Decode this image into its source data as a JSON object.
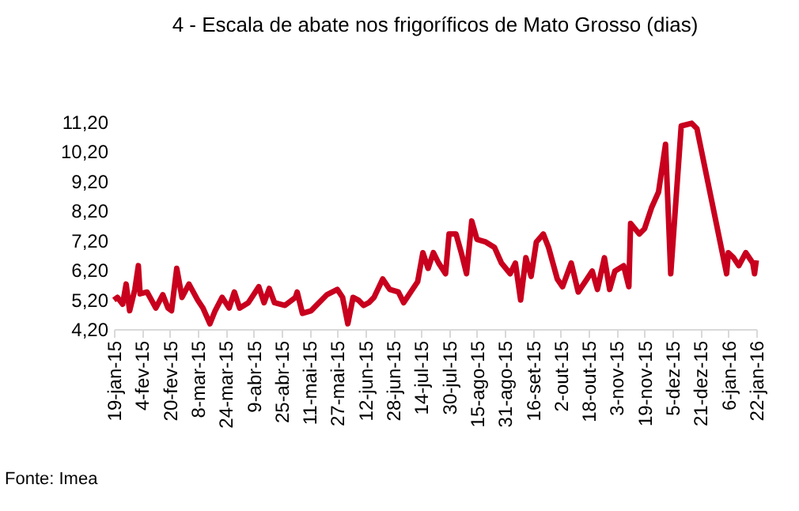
{
  "chart_data": {
    "type": "line",
    "title": "4 - Escala de abate nos frigoríficos de Mato Grosso (dias)",
    "annotations": [
      "Fonte: Imea"
    ],
    "x": [
      "2015-01-19",
      "2015-01-21",
      "2015-01-24",
      "2015-01-26",
      "2015-01-28",
      "2015-01-31",
      "2015-02-02",
      "2015-02-03",
      "2015-02-07",
      "2015-02-12",
      "2015-02-16",
      "2015-02-19",
      "2015-02-21",
      "2015-02-24",
      "2015-02-27",
      "2015-03-03",
      "2015-03-08",
      "2015-03-11",
      "2015-03-15",
      "2015-03-18",
      "2015-03-22",
      "2015-03-26",
      "2015-03-29",
      "2015-04-01",
      "2015-04-06",
      "2015-04-09",
      "2015-04-12",
      "2015-04-15",
      "2015-04-18",
      "2015-04-21",
      "2015-04-27",
      "2015-05-03",
      "2015-05-04",
      "2015-05-07",
      "2015-05-12",
      "2015-05-15",
      "2015-05-21",
      "2015-05-27",
      "2015-05-30",
      "2015-06-02",
      "2015-06-05",
      "2015-06-08",
      "2015-06-11",
      "2015-06-14",
      "2015-06-17",
      "2015-06-22",
      "2015-06-26",
      "2015-07-01",
      "2015-07-04",
      "2015-07-07",
      "2015-07-12",
      "2015-07-15",
      "2015-07-18",
      "2015-07-21",
      "2015-07-24",
      "2015-07-28",
      "2015-07-30",
      "2015-08-03",
      "2015-08-06",
      "2015-08-09",
      "2015-08-12",
      "2015-08-15",
      "2015-08-20",
      "2015-08-25",
      "2015-08-29",
      "2015-09-03",
      "2015-09-06",
      "2015-09-09",
      "2015-09-12",
      "2015-09-15",
      "2015-09-18",
      "2015-09-22",
      "2015-09-25",
      "2015-09-30",
      "2015-10-03",
      "2015-10-08",
      "2015-10-12",
      "2015-10-17",
      "2015-10-20",
      "2015-10-23",
      "2015-10-27",
      "2015-10-30",
      "2015-11-02",
      "2015-11-07",
      "2015-11-10",
      "2015-11-11",
      "2015-11-16",
      "2015-11-19",
      "2015-11-23",
      "2015-11-27",
      "2015-12-01",
      "2015-12-04",
      "2015-12-10",
      "2015-12-16",
      "2015-12-19",
      "2016-01-05",
      "2016-01-06",
      "2016-01-09",
      "2016-01-12",
      "2016-01-16",
      "2016-01-20",
      "2016-01-21",
      "2016-01-22"
    ],
    "series": [
      {
        "color": "#c8001e",
        "values": [
          5.18,
          5.27,
          5.04,
          5.72,
          4.82,
          5.54,
          6.34,
          5.39,
          5.45,
          4.91,
          5.36,
          4.91,
          4.82,
          6.25,
          5.27,
          5.72,
          5.18,
          4.91,
          4.38,
          4.82,
          5.27,
          4.91,
          5.45,
          4.91,
          5.09,
          5.36,
          5.63,
          5.09,
          5.57,
          5.09,
          5.0,
          5.27,
          5.45,
          4.73,
          4.82,
          5.0,
          5.36,
          5.54,
          5.27,
          4.38,
          5.27,
          5.18,
          5.0,
          5.09,
          5.27,
          5.89,
          5.54,
          5.45,
          5.09,
          5.36,
          5.8,
          6.78,
          6.25,
          6.78,
          6.43,
          6.07,
          7.41,
          7.41,
          6.78,
          6.07,
          7.85,
          7.23,
          7.14,
          6.96,
          6.43,
          6.07,
          6.43,
          5.18,
          6.61,
          5.98,
          7.14,
          7.41,
          6.96,
          5.89,
          5.63,
          6.43,
          5.45,
          5.89,
          6.16,
          5.54,
          6.61,
          5.54,
          6.16,
          6.34,
          5.63,
          7.77,
          7.41,
          7.59,
          8.3,
          8.83,
          10.44,
          6.07,
          11.06,
          11.15,
          10.97,
          6.07,
          6.78,
          6.61,
          6.34,
          6.78,
          6.43,
          6.07,
          6.52
        ]
      }
    ],
    "xlim": [
      "2015-01-19",
      "2016-01-22"
    ],
    "xticks": [
      {
        "value": "2015-01-19",
        "label": "19-jan-15"
      },
      {
        "value": "2015-02-04",
        "label": "4-fev-15"
      },
      {
        "value": "2015-02-20",
        "label": "20-fev-15"
      },
      {
        "value": "2015-03-08",
        "label": "8-mar-15"
      },
      {
        "value": "2015-03-24",
        "label": "24-mar-15"
      },
      {
        "value": "2015-04-09",
        "label": "9-abr-15"
      },
      {
        "value": "2015-04-25",
        "label": "25-abr-15"
      },
      {
        "value": "2015-05-11",
        "label": "11-mai-15"
      },
      {
        "value": "2015-05-27",
        "label": "27-mai-15"
      },
      {
        "value": "2015-06-12",
        "label": "12-jun-15"
      },
      {
        "value": "2015-06-28",
        "label": "28-jun-15"
      },
      {
        "value": "2015-07-14",
        "label": "14-jul-15"
      },
      {
        "value": "2015-07-30",
        "label": "30-jul-15"
      },
      {
        "value": "2015-08-15",
        "label": "15-ago-15"
      },
      {
        "value": "2015-08-31",
        "label": "31-ago-15"
      },
      {
        "value": "2015-09-16",
        "label": "16-set-15"
      },
      {
        "value": "2015-10-02",
        "label": "2-out-15"
      },
      {
        "value": "2015-10-18",
        "label": "18-out-15"
      },
      {
        "value": "2015-11-03",
        "label": "3-nov-15"
      },
      {
        "value": "2015-11-19",
        "label": "19-nov-15"
      },
      {
        "value": "2015-12-05",
        "label": "5-dez-15"
      },
      {
        "value": "2015-12-21",
        "label": "21-dez-15"
      },
      {
        "value": "2016-01-06",
        "label": "6-jan-16"
      },
      {
        "value": "2016-01-22",
        "label": "22-jan-16"
      }
    ],
    "ylim": [
      4.2,
      11.2
    ],
    "yticks": [
      {
        "value": 4.2,
        "label": "4,20"
      },
      {
        "value": 5.2,
        "label": "5,20"
      },
      {
        "value": 6.2,
        "label": "6,20"
      },
      {
        "value": 7.2,
        "label": "7,20"
      },
      {
        "value": 8.2,
        "label": "8,20"
      },
      {
        "value": 9.2,
        "label": "9,20"
      },
      {
        "value": 10.2,
        "label": "10,20"
      },
      {
        "value": 11.2,
        "label": "11,20"
      }
    ],
    "marker": "none",
    "line_style": "solid"
  }
}
